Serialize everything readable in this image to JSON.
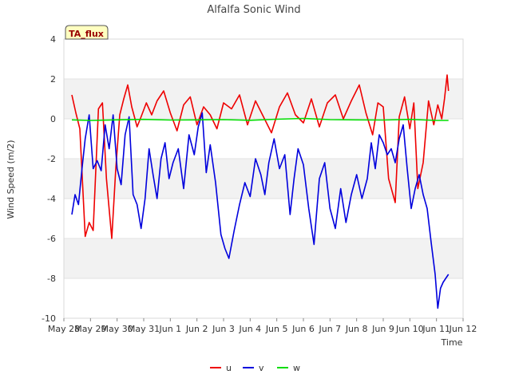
{
  "chart_data": {
    "type": "line",
    "title": "Alfalfa Sonic Wind",
    "xlabel": "Time",
    "ylabel": "Wind Speed (m/2)",
    "xlim": [
      0,
      15
    ],
    "ylim": [
      -10,
      4
    ],
    "yticks": [
      -10,
      -8,
      -6,
      -4,
      -2,
      0,
      2,
      4
    ],
    "x_tick_labels": [
      "May 28",
      "May 29",
      "May 30",
      "May 31",
      "Jun 1",
      "Jun 2",
      "Jun 3",
      "Jun 4",
      "Jun 5",
      "Jun 6",
      "Jun 7",
      "Jun 8",
      "Jun 9",
      "Jun 10",
      "Jun 11",
      "Jun 12"
    ],
    "x_unit": "days since May 28",
    "grid": "alternating horizontal bands",
    "legend_position": "bottom-center",
    "annotation": "TA_flux",
    "series": [
      {
        "name": "u",
        "color": "#ee0000",
        "x": [
          0.3,
          0.45,
          0.6,
          0.8,
          0.95,
          1.1,
          1.3,
          1.45,
          1.6,
          1.8,
          1.95,
          2.1,
          2.25,
          2.4,
          2.55,
          2.75,
          2.9,
          3.1,
          3.3,
          3.5,
          3.75,
          4.0,
          4.25,
          4.5,
          4.75,
          5.0,
          5.25,
          5.5,
          5.75,
          6.0,
          6.3,
          6.6,
          6.9,
          7.2,
          7.5,
          7.8,
          8.1,
          8.4,
          8.7,
          9.0,
          9.3,
          9.6,
          9.9,
          10.2,
          10.5,
          10.8,
          11.1,
          11.35,
          11.6,
          11.8,
          12.0,
          12.2,
          12.45,
          12.6,
          12.8,
          13.0,
          13.15,
          13.3,
          13.5,
          13.7,
          13.9,
          14.05,
          14.2,
          14.3,
          14.4,
          14.45
        ],
        "values": [
          1.2,
          0.3,
          -0.5,
          -5.9,
          -5.2,
          -5.6,
          0.5,
          0.8,
          -3.0,
          -6.0,
          -2.5,
          0.2,
          1.0,
          1.7,
          0.6,
          -0.4,
          0.1,
          0.8,
          0.2,
          0.9,
          1.4,
          0.3,
          -0.6,
          0.7,
          1.1,
          -0.3,
          0.6,
          0.2,
          -0.5,
          0.8,
          0.5,
          1.2,
          -0.3,
          0.9,
          0.1,
          -0.7,
          0.6,
          1.3,
          0.2,
          -0.2,
          1.0,
          -0.4,
          0.8,
          1.2,
          0.0,
          0.9,
          1.7,
          0.3,
          -0.8,
          0.8,
          0.6,
          -3.0,
          -4.2,
          0.1,
          1.1,
          -0.5,
          0.8,
          -3.5,
          -2.2,
          0.9,
          -0.3,
          0.7,
          0.0,
          1.0,
          2.2,
          1.4
        ]
      },
      {
        "name": "v",
        "color": "#0000dd",
        "x": [
          0.3,
          0.42,
          0.55,
          0.68,
          0.8,
          0.95,
          1.1,
          1.25,
          1.4,
          1.55,
          1.7,
          1.85,
          2.0,
          2.15,
          2.3,
          2.45,
          2.6,
          2.75,
          2.9,
          3.05,
          3.2,
          3.35,
          3.5,
          3.65,
          3.8,
          3.95,
          4.1,
          4.3,
          4.5,
          4.7,
          4.9,
          5.05,
          5.2,
          5.35,
          5.5,
          5.7,
          5.9,
          6.05,
          6.2,
          6.4,
          6.6,
          6.8,
          7.0,
          7.2,
          7.4,
          7.55,
          7.7,
          7.9,
          8.1,
          8.3,
          8.5,
          8.65,
          8.8,
          9.0,
          9.2,
          9.4,
          9.6,
          9.8,
          10.0,
          10.2,
          10.4,
          10.6,
          10.8,
          11.0,
          11.2,
          11.4,
          11.55,
          11.7,
          11.85,
          12.0,
          12.15,
          12.3,
          12.45,
          12.6,
          12.75,
          12.9,
          13.05,
          13.2,
          13.35,
          13.5,
          13.65,
          13.8,
          13.95,
          14.05,
          14.15,
          14.25,
          14.35,
          14.45
        ],
        "values": [
          -4.8,
          -3.8,
          -4.3,
          -2.5,
          -1.0,
          0.2,
          -2.5,
          -2.1,
          -2.6,
          -0.3,
          -1.5,
          0.2,
          -2.5,
          -3.3,
          -0.8,
          0.1,
          -3.8,
          -4.3,
          -5.5,
          -4.0,
          -1.5,
          -2.8,
          -4.0,
          -2.0,
          -1.2,
          -3.0,
          -2.2,
          -1.5,
          -3.5,
          -0.8,
          -1.8,
          -0.4,
          0.3,
          -2.7,
          -1.3,
          -3.2,
          -5.8,
          -6.5,
          -7.0,
          -5.6,
          -4.3,
          -3.2,
          -3.9,
          -2.0,
          -2.8,
          -3.8,
          -2.2,
          -1.0,
          -2.5,
          -1.8,
          -4.8,
          -3.0,
          -1.5,
          -2.3,
          -4.5,
          -6.3,
          -3.0,
          -2.2,
          -4.5,
          -5.5,
          -3.5,
          -5.2,
          -3.8,
          -2.8,
          -4.0,
          -3.0,
          -1.2,
          -2.5,
          -0.8,
          -1.2,
          -1.8,
          -1.5,
          -2.2,
          -1.0,
          -0.3,
          -2.5,
          -4.5,
          -3.5,
          -2.8,
          -3.8,
          -4.5,
          -6.2,
          -7.8,
          -9.5,
          -8.5,
          -8.2,
          -8.0,
          -7.8
        ]
      },
      {
        "name": "w",
        "color": "#00dd00",
        "x": [
          0.3,
          1.0,
          2.0,
          3.0,
          4.0,
          5.0,
          6.0,
          7.0,
          8.0,
          9.0,
          10.0,
          11.0,
          12.0,
          13.0,
          14.0,
          14.45
        ],
        "values": [
          -0.05,
          -0.08,
          -0.05,
          -0.03,
          -0.06,
          -0.05,
          -0.04,
          -0.07,
          -0.02,
          0.02,
          -0.04,
          -0.05,
          -0.06,
          -0.03,
          -0.08,
          -0.08
        ]
      }
    ]
  }
}
